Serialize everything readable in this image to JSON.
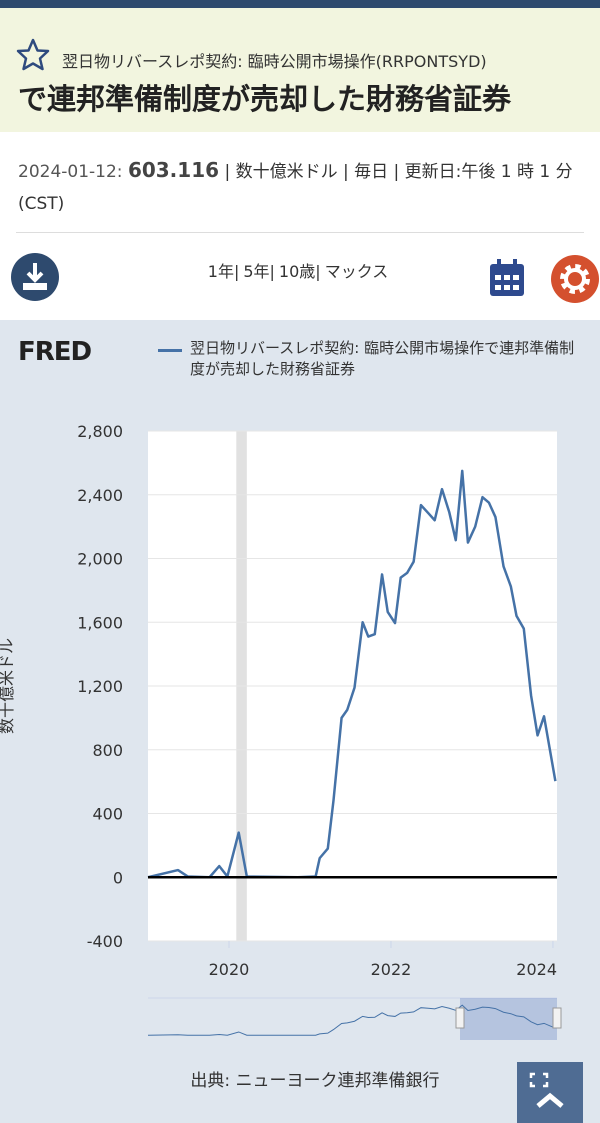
{
  "header": {
    "title_prefix": "翌日物リバースレポ契約: 臨時公開市場操作(RRPONTSYD)",
    "title": "で連邦準備制度が売却した財務省証券"
  },
  "meta": {
    "date": "2024-01-12:",
    "value": "603.116",
    "details": "| 数十億米ドル | 毎日 | 更新日:午後 1 時 1 分 (CST)"
  },
  "range_links": [
    "1年|",
    "5年|",
    "10歳|",
    "マックス"
  ],
  "chart_data": {
    "type": "line",
    "logo": "FRED",
    "ylabel": "数十億米ドル",
    "source": "出典: ニューヨーク連邦準備銀行",
    "x": [
      2019.0,
      2019.37,
      2019.49,
      2019.76,
      2019.88,
      2019.98,
      2020.12,
      2020.22,
      2020.85,
      2021.07,
      2021.12,
      2021.22,
      2021.29,
      2021.39,
      2021.46,
      2021.55,
      2021.65,
      2021.72,
      2021.8,
      2021.89,
      2021.96,
      2022.05,
      2022.12,
      2022.2,
      2022.28,
      2022.37,
      2022.46,
      2022.54,
      2022.63,
      2022.72,
      2022.8,
      2022.88,
      2022.95,
      2023.04,
      2023.13,
      2023.21,
      2023.29,
      2023.39,
      2023.48,
      2023.55,
      2023.64,
      2023.73,
      2023.81,
      2023.89,
      2024.03
    ],
    "series": [
      {
        "name": "翌日物リバースレポ契約: 臨時公開市場操作で連邦準備制度が売却した財務省証券",
        "color": "#4572a7",
        "values": [
          0,
          45,
          5,
          0,
          70,
          5,
          280,
          5,
          0,
          5,
          120,
          180,
          480,
          1000,
          1050,
          1190,
          1600,
          1510,
          1525,
          1900,
          1665,
          1595,
          1880,
          1910,
          1980,
          2335,
          2285,
          2240,
          2435,
          2290,
          2115,
          2550,
          2100,
          2200,
          2385,
          2350,
          2260,
          1950,
          1825,
          1640,
          1560,
          1140,
          890,
          1010,
          603.116
        ]
      }
    ],
    "recession": [
      2020.09,
      2020.22
    ],
    "xlim": [
      2019.0,
      2024.05
    ],
    "xticks": [
      2020,
      2022,
      2024
    ],
    "ylim": [
      -400,
      2800
    ],
    "yticks": [
      -400,
      0,
      400,
      800,
      {
        "value": 1200,
        "label": "1,200"
      },
      {
        "value": 1600,
        "label": "1,600"
      },
      {
        "value": 2000,
        "label": "2,000"
      },
      {
        "value": 2400,
        "label": "2,400"
      },
      {
        "value": 2800,
        "label": "2,800"
      }
    ],
    "grid": true
  }
}
